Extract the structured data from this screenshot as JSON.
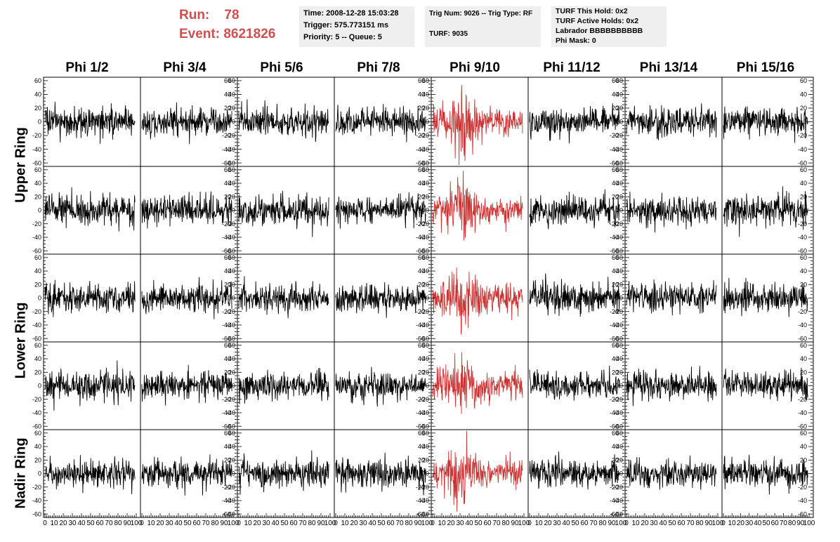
{
  "header": {
    "run_label": "Run:",
    "run_value": "78",
    "event_label": "Event:",
    "event_value": "8621826",
    "time": "Time: 2008-12-28 15:03:28",
    "trigger": "Trigger: 575.773151 ms",
    "priority": "Priority: 5 -- Queue: 5",
    "trig_num": "Trig Num: 9026 -- Trig Type: RF",
    "turf": "TURF: 9035",
    "turf_hold": "TURF This Hold: 0x2",
    "turf_active": "TURF Active Holds: 0x2",
    "labrador": "Labrador BBBBBBBBBB",
    "phi_mask": "Phi Mask: 0"
  },
  "columns": [
    "Phi 1/2",
    "Phi 3/4",
    "Phi 5/6",
    "Phi 7/8",
    "Phi 9/10",
    "Phi 11/12",
    "Phi 13/14",
    "Phi 15/16"
  ],
  "rings": [
    {
      "label": "Upper Ring"
    },
    {
      "label": "Lower Ring"
    },
    {
      "label": "Nadir Ring"
    }
  ],
  "colors": {
    "highlight": "#cc3333",
    "trace": "#000000",
    "header_red": "#d05050",
    "info_bg": "#efefef"
  },
  "chart_data": {
    "type": "line",
    "layout": "grid of 5 rows x 8 columns of waveform panels",
    "xlim": [
      0,
      100
    ],
    "ylim": [
      -65,
      65
    ],
    "x_ticks": [
      0,
      10,
      20,
      30,
      40,
      50,
      60,
      70,
      80,
      90,
      100
    ],
    "x_tick_labels": [
      "0",
      "10",
      "20",
      "30",
      "40",
      "50",
      "60",
      "70",
      "80",
      "90",
      "100"
    ],
    "y_ticks": [
      -60,
      -40,
      -20,
      0,
      20,
      40,
      60
    ],
    "y_tick_labels": [
      "-60",
      "-40",
      "-20",
      "0",
      "20",
      "40",
      "60"
    ],
    "highlighted_column": "Phi 9/10",
    "rows": 5,
    "approx_amplitude_normal": 20,
    "approx_amplitude_highlighted": 35,
    "samples_per_trace": 260,
    "grid": false
  }
}
